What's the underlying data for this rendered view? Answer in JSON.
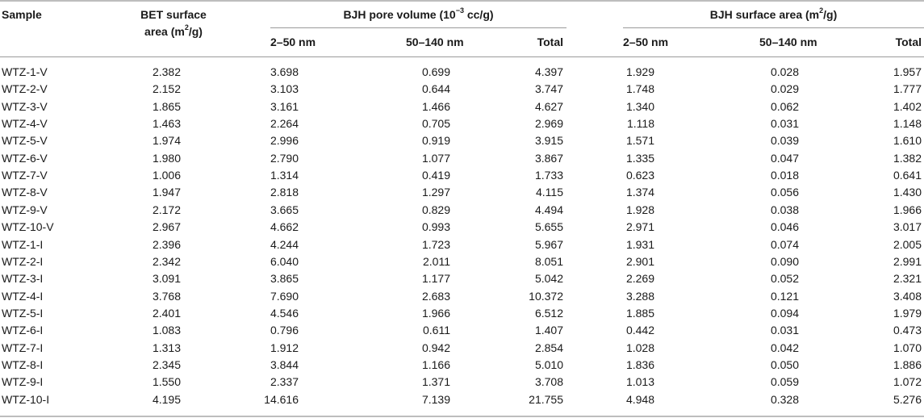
{
  "header": {
    "sample": "Sample",
    "bet_line1": "BET surface",
    "bet_line2_pre": "area (m",
    "bet_line2_sup": "2",
    "bet_line2_post": "/g)",
    "pore_group_pre": "BJH pore volume (10",
    "pore_group_sup": "−3",
    "pore_group_post": " cc/g)",
    "area_group_pre": "BJH surface area (m",
    "area_group_sup": "2",
    "area_group_post": "/g)",
    "col_2_50": "2–50 nm",
    "col_50_140": "50–140 nm",
    "col_total": "Total"
  },
  "rows": [
    [
      "WTZ-1-V",
      "2.382",
      "3.698",
      "0.699",
      "4.397",
      "1.929",
      "0.028",
      "1.957"
    ],
    [
      "WTZ-2-V",
      "2.152",
      "3.103",
      "0.644",
      "3.747",
      "1.748",
      "0.029",
      "1.777"
    ],
    [
      "WTZ-3-V",
      "1.865",
      "3.161",
      "1.466",
      "4.627",
      "1.340",
      "0.062",
      "1.402"
    ],
    [
      "WTZ-4-V",
      "1.463",
      "2.264",
      "0.705",
      "2.969",
      "1.118",
      "0.031",
      "1.148"
    ],
    [
      "WTZ-5-V",
      "1.974",
      "2.996",
      "0.919",
      "3.915",
      "1.571",
      "0.039",
      "1.610"
    ],
    [
      "WTZ-6-V",
      "1.980",
      "2.790",
      "1.077",
      "3.867",
      "1.335",
      "0.047",
      "1.382"
    ],
    [
      "WTZ-7-V",
      "1.006",
      "1.314",
      "0.419",
      "1.733",
      "0.623",
      "0.018",
      "0.641"
    ],
    [
      "WTZ-8-V",
      "1.947",
      "2.818",
      "1.297",
      "4.115",
      "1.374",
      "0.056",
      "1.430"
    ],
    [
      "WTZ-9-V",
      "2.172",
      "3.665",
      "0.829",
      "4.494",
      "1.928",
      "0.038",
      "1.966"
    ],
    [
      "WTZ-10-V",
      "2.967",
      "4.662",
      "0.993",
      "5.655",
      "2.971",
      "0.046",
      "3.017"
    ],
    [
      "WTZ-1-I",
      "2.396",
      "4.244",
      "1.723",
      "5.967",
      "1.931",
      "0.074",
      "2.005"
    ],
    [
      "WTZ-2-I",
      "2.342",
      "6.040",
      "2.011",
      "8.051",
      "2.901",
      "0.090",
      "2.991"
    ],
    [
      "WTZ-3-I",
      "3.091",
      "3.865",
      "1.177",
      "5.042",
      "2.269",
      "0.052",
      "2.321"
    ],
    [
      "WTZ-4-I",
      "3.768",
      "7.690",
      "2.683",
      "10.372",
      "3.288",
      "0.121",
      "3.408"
    ],
    [
      "WTZ-5-I",
      "2.401",
      "4.546",
      "1.966",
      "6.512",
      "1.885",
      "0.094",
      "1.979"
    ],
    [
      "WTZ-6-I",
      "1.083",
      "0.796",
      "0.611",
      "1.407",
      "0.442",
      "0.031",
      "0.473"
    ],
    [
      "WTZ-7-I",
      "1.313",
      "1.912",
      "0.942",
      "2.854",
      "1.028",
      "0.042",
      "1.070"
    ],
    [
      "WTZ-8-I",
      "2.345",
      "3.844",
      "1.166",
      "5.010",
      "1.836",
      "0.050",
      "1.886"
    ],
    [
      "WTZ-9-I",
      "1.550",
      "2.337",
      "1.371",
      "3.708",
      "1.013",
      "0.059",
      "1.072"
    ],
    [
      "WTZ-10-I",
      "4.195",
      "14.616",
      "7.139",
      "21.755",
      "4.948",
      "0.328",
      "5.276"
    ]
  ]
}
